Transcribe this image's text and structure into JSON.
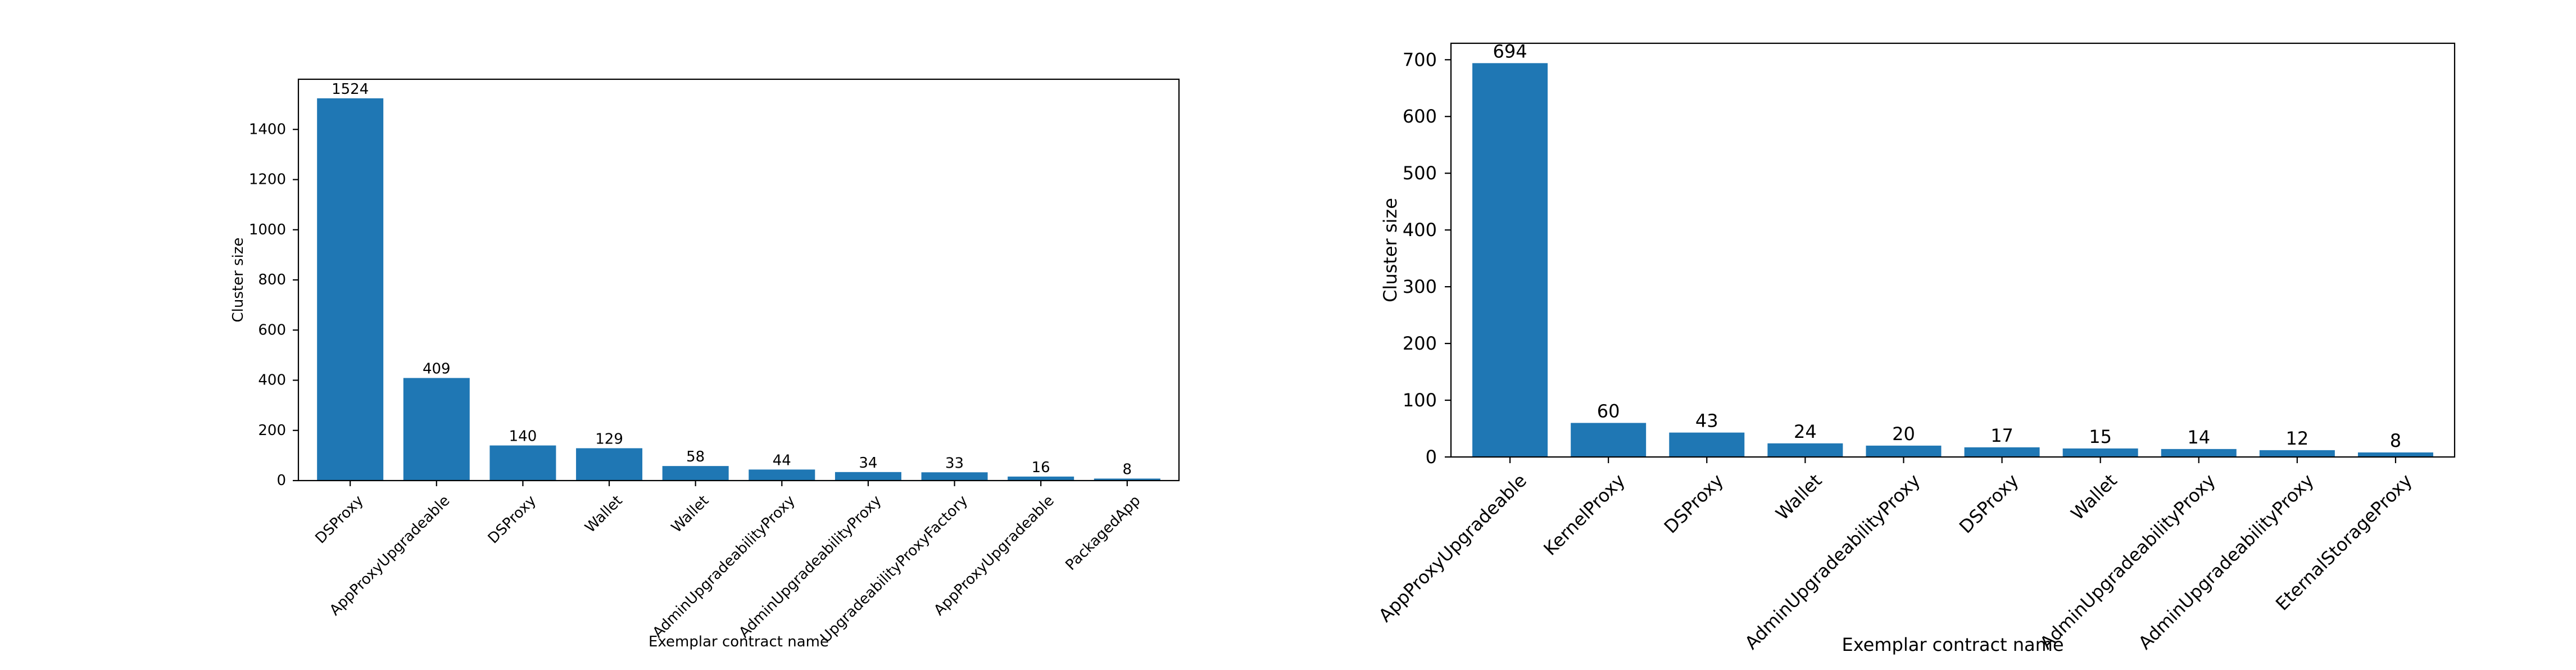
{
  "colors": {
    "bar": "#1f77b4",
    "axis": "#000000",
    "background": "#ffffff"
  },
  "chart_data": [
    {
      "type": "bar",
      "title": "",
      "xlabel": "Exemplar contract name",
      "ylabel": "Cluster size",
      "ylim": [
        0,
        1600
      ],
      "yticks": [
        0,
        200,
        400,
        600,
        800,
        1000,
        1200,
        1400
      ],
      "categories": [
        "DSProxy",
        "AppProxyUpgradeable",
        "DSProxy",
        "Wallet",
        "Wallet",
        "AdminUpgradeabilityProxy",
        "AdminUpgradeabilityProxy",
        "UpgradeabilityProxyFactory",
        "AppProxyUpgradeable",
        "PackagedApp"
      ],
      "values": [
        1524,
        409,
        140,
        129,
        58,
        44,
        34,
        33,
        16,
        8
      ],
      "data_labels": [
        "1524",
        "409",
        "140",
        "129",
        "58",
        "44",
        "34",
        "33",
        "16",
        "8"
      ],
      "grid": false,
      "legend": "none"
    },
    {
      "type": "bar",
      "title": "",
      "xlabel": "Exemplar contract name",
      "ylabel": "Cluster size",
      "ylim": [
        0,
        729
      ],
      "yticks": [
        0,
        100,
        200,
        300,
        400,
        500,
        600,
        700
      ],
      "categories": [
        "AppProxyUpgradeable",
        "KernelProxy",
        "DSProxy",
        "Wallet",
        "AdminUpgradeabilityProxy",
        "DSProxy",
        "Wallet",
        "AdminUpgradeabilityProxy",
        "AdminUpgradeabilityProxy",
        "EternalStorageProxy"
      ],
      "values": [
        694,
        60,
        43,
        24,
        20,
        17,
        15,
        14,
        12,
        8
      ],
      "data_labels": [
        "694",
        "60",
        "43",
        "24",
        "20",
        "17",
        "15",
        "14",
        "12",
        "8"
      ],
      "grid": false,
      "legend": "none"
    }
  ]
}
